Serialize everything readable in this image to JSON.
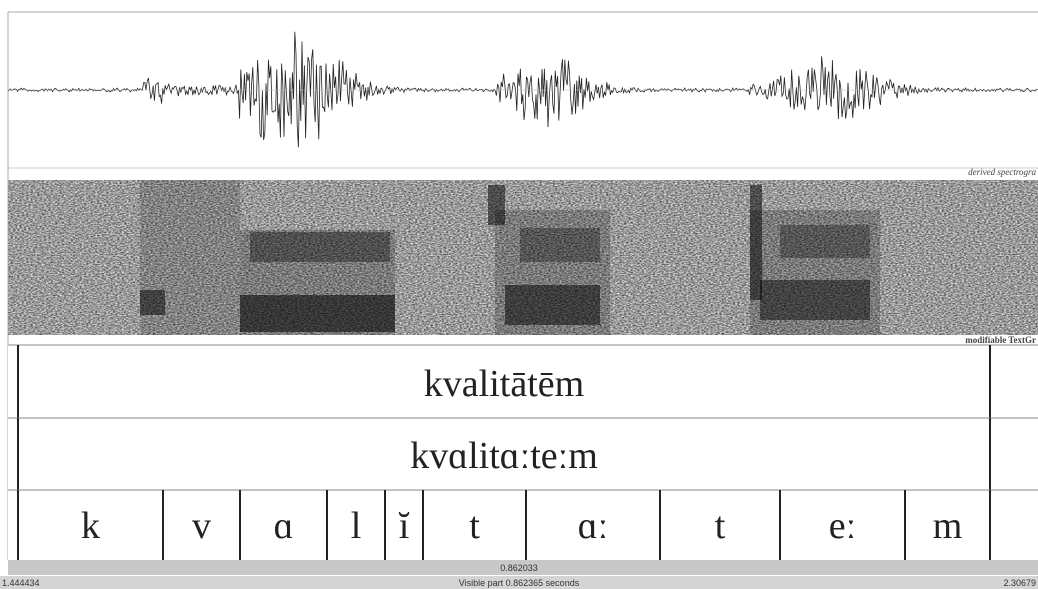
{
  "spectrogram_label": "derived spectrogra",
  "textgrid_label": "modifiable TextGr",
  "tiers": [
    {
      "intervals": [
        "kvalitātēm"
      ]
    },
    {
      "intervals": [
        "kvɑlitɑːteːm"
      ]
    },
    {
      "intervals": [
        "k",
        "v",
        "ɑ",
        "l",
        "ĭ",
        "t",
        "ɑː",
        "t",
        "eː",
        "m"
      ]
    }
  ],
  "selection_duration": "0.862033",
  "window": {
    "start": "1.444434",
    "visible": "Visible part 0.862365 seconds",
    "end": "2.30679"
  }
}
